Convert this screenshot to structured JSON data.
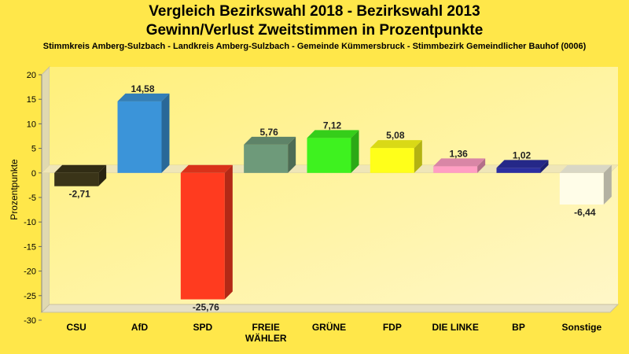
{
  "chart_data": {
    "type": "bar",
    "title": "Vergleich Bezirkswahl 2018 - Bezirkswahl 2013",
    "subtitle": "Gewinn/Verlust Zweitstimmen in Prozentpunkte",
    "caption": "Stimmkreis Amberg-Sulzbach - Landkreis Amberg-Sulzbach - Gemeinde Kümmersbruck - Stimmbezirk Gemeindlicher Bauhof (0006)",
    "ylabel": "Prozentpunkte",
    "xlabel": "",
    "ylim": [
      -30,
      20
    ],
    "yticks": [
      "20",
      "15",
      "10",
      "5",
      "0",
      "-5",
      "-10",
      "-15",
      "-20",
      "-25",
      "-30"
    ],
    "categories": [
      "CSU",
      "AfD",
      "SPD",
      "FREIE WÄHLER",
      "GRÜNE",
      "FDP",
      "DIE LINKE",
      "BP",
      "Sonstige"
    ],
    "category_lines": [
      [
        "CSU"
      ],
      [
        "AfD"
      ],
      [
        "SPD"
      ],
      [
        "FREIE",
        "WÄHLER"
      ],
      [
        "GRÜNE"
      ],
      [
        "FDP"
      ],
      [
        "DIE LINKE"
      ],
      [
        "BP"
      ],
      [
        "Sonstige"
      ]
    ],
    "values": [
      -2.71,
      14.58,
      -25.76,
      5.76,
      7.12,
      5.08,
      1.36,
      1.02,
      -6.44
    ],
    "value_labels": [
      "-2,71",
      "14,58",
      "-25,76",
      "5,76",
      "7,12",
      "5,08",
      "1,36",
      "1,02",
      "-6,44"
    ],
    "colors": [
      "#3a3418",
      "#3b94d9",
      "#ff3b1f",
      "#6e9a7a",
      "#3ef21f",
      "#ffff1a",
      "#ff9ec3",
      "#2b2fa0",
      "#fffde8"
    ],
    "grid": false,
    "legend": "none"
  }
}
